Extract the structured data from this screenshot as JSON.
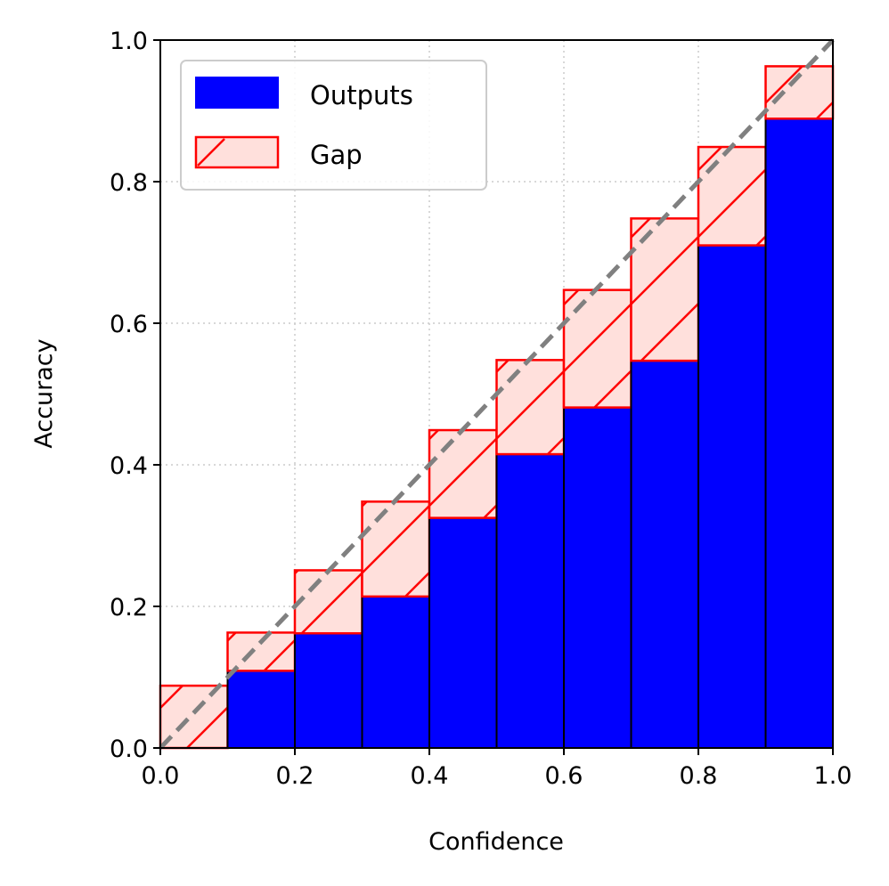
{
  "chart_data": {
    "type": "bar",
    "xlabel": "Confidence",
    "ylabel": "Accuracy",
    "xlim": [
      0.0,
      1.0
    ],
    "ylim": [
      0.0,
      1.0
    ],
    "grid": true,
    "legend_position": "top-left",
    "xticks": [
      "0.0",
      "0.2",
      "0.4",
      "0.6",
      "0.8",
      "1.0"
    ],
    "yticks": [
      "0.0",
      "0.2",
      "0.4",
      "0.6",
      "0.8",
      "1.0"
    ],
    "bins": [
      {
        "x0": 0.0,
        "x1": 0.1,
        "output": 0.0,
        "expected": 0.088
      },
      {
        "x0": 0.1,
        "x1": 0.2,
        "output": 0.109,
        "expected": 0.163
      },
      {
        "x0": 0.2,
        "x1": 0.3,
        "output": 0.162,
        "expected": 0.251
      },
      {
        "x0": 0.3,
        "x1": 0.4,
        "output": 0.214,
        "expected": 0.348
      },
      {
        "x0": 0.4,
        "x1": 0.5,
        "output": 0.325,
        "expected": 0.449
      },
      {
        "x0": 0.5,
        "x1": 0.6,
        "output": 0.415,
        "expected": 0.548
      },
      {
        "x0": 0.6,
        "x1": 0.7,
        "output": 0.481,
        "expected": 0.647
      },
      {
        "x0": 0.7,
        "x1": 0.8,
        "output": 0.547,
        "expected": 0.748
      },
      {
        "x0": 0.8,
        "x1": 0.9,
        "output": 0.71,
        "expected": 0.849
      },
      {
        "x0": 0.9,
        "x1": 1.0,
        "output": 0.889,
        "expected": 0.963
      }
    ],
    "series": [
      {
        "name": "Outputs"
      },
      {
        "name": "Gap"
      }
    ],
    "reference_line": {
      "style": "dashed",
      "from": [
        0,
        0
      ],
      "to": [
        1,
        1
      ]
    },
    "colors": {
      "outputs_fill": "#0000ff",
      "outputs_edge": "#000000",
      "gap_fill": "#ffe0dc",
      "gap_edge": "#ff0000",
      "diagonal": "#808080",
      "grid": "#cccccc"
    }
  }
}
